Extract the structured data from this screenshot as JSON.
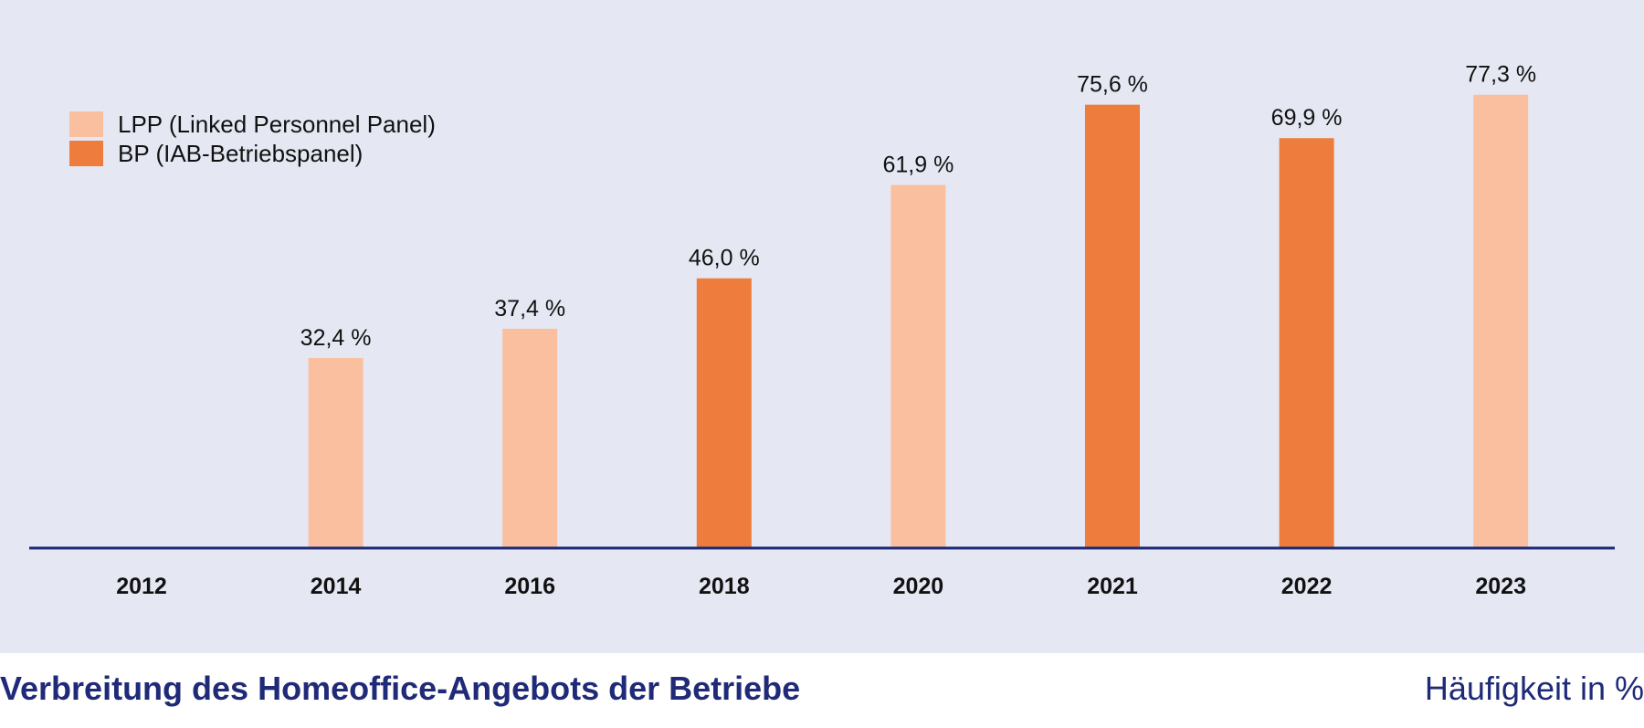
{
  "colors": {
    "background": "#e5e8f2",
    "lpp": "#f9bf9f",
    "bp": "#ee7d3d",
    "axis": "#1f2a78",
    "footer_text": "#1f2a78"
  },
  "legend": {
    "lpp_label": "LPP (Linked Personnel Panel)",
    "bp_label": "BP (IAB-Betriebspanel)"
  },
  "footer": {
    "title": "Verbreitung des Homeoffice-Angebots der Betriebe",
    "unit": "Häufigkeit in %"
  },
  "chart_data": {
    "type": "bar",
    "title": "Verbreitung des Homeoffice-Angebots der Betriebe",
    "ylabel": "Häufigkeit in %",
    "ylim": [
      0,
      80
    ],
    "grid": false,
    "legend_position": "top-left",
    "categories": [
      "2012",
      "2014",
      "2016",
      "2018",
      "2020",
      "2021",
      "2022",
      "2023"
    ],
    "values": [
      null,
      32.4,
      37.4,
      46.0,
      61.9,
      75.6,
      69.9,
      77.3
    ],
    "value_labels": [
      "",
      "32,4 %",
      "37,4 %",
      "46,0 %",
      "61,9 %",
      "75,6 %",
      "69,9 %",
      "77,3 %"
    ],
    "sources": [
      "",
      "LPP",
      "LPP",
      "BP",
      "LPP",
      "BP",
      "BP",
      "LPP"
    ],
    "series": [
      {
        "name": "LPP (Linked Personnel Panel)",
        "key": "LPP"
      },
      {
        "name": "BP (IAB-Betriebspanel)",
        "key": "BP"
      }
    ]
  }
}
